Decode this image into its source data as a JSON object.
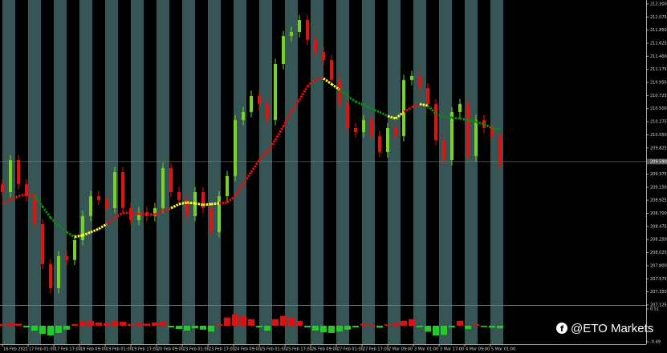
{
  "chart_data": [
    {
      "type": "candlestick",
      "up_color": "#76d420",
      "down_color": "#e8100f",
      "xlim": [
        -0.3,
        80.2
      ],
      "xticks": [
        {
          "value": 0,
          "label": "16 Feb 2021"
        },
        {
          "value": 3.2,
          "label": "17 Feb 01:00"
        },
        {
          "value": 6.4,
          "label": "17 Feb 17:00"
        },
        {
          "value": 9.6,
          "label": "18 Feb 09:00"
        },
        {
          "value": 12.8,
          "label": "19 Feb 01:00"
        },
        {
          "value": 16,
          "label": "19 Feb 17:00"
        },
        {
          "value": 19.2,
          "label": "20 Feb 09:00"
        },
        {
          "value": 22.4,
          "label": "23 Feb 01:00"
        },
        {
          "value": 25.6,
          "label": "23 Feb 17:00"
        },
        {
          "value": 28.8,
          "label": "24 Feb 09:00"
        },
        {
          "value": 32,
          "label": "25 Feb 01:00"
        },
        {
          "value": 35.2,
          "label": "25 Feb 17:00"
        },
        {
          "value": 38.4,
          "label": "26 Feb 09:00"
        },
        {
          "value": 41.6,
          "label": "27 Feb 01:00"
        },
        {
          "value": 44.8,
          "label": "27 Feb 17:00"
        },
        {
          "value": 48,
          "label": "2 Mar 09:00"
        },
        {
          "value": 51.2,
          "label": "3 Mar 01:00"
        },
        {
          "value": 54.4,
          "label": "3 Mar 17:00"
        },
        {
          "value": 57.6,
          "label": "4 Mar 09:00"
        },
        {
          "value": 60.8,
          "label": "5 Mar 01:00"
        }
      ],
      "ylim": [
        207.125,
        212.368
      ],
      "yticks": [
        207.125,
        {
          "value": 207.35,
          "label": "207.350"
        },
        207.575,
        {
          "value": 207.8,
          "label": "207.800"
        },
        208.025,
        {
          "value": 208.25,
          "label": "208.250"
        },
        208.475,
        {
          "value": 208.7,
          "label": "208.700"
        },
        208.925,
        {
          "value": 209.15,
          "label": "209.150"
        },
        209.375,
        {
          "value": 209.6,
          "label": "209.600"
        },
        209.825,
        {
          "value": 210.05,
          "label": "210.050"
        },
        210.275,
        {
          "value": 210.5,
          "label": "210.500"
        },
        210.725,
        {
          "value": 210.95,
          "label": "210.950"
        },
        211.175,
        {
          "value": 211.4,
          "label": "211.400"
        },
        211.625,
        {
          "value": 211.85,
          "label": "211.850"
        },
        212.075,
        {
          "value": 212.3,
          "label": "212.300"
        }
      ],
      "current_price": {
        "value": 209.59,
        "label": "209.590"
      },
      "open": [
        209.2,
        209.065,
        209.616,
        209.203,
        208.997,
        208.515,
        207.827,
        207.414,
        207.965,
        207.9,
        208.24,
        208.653,
        208.997,
        208.928,
        208.79,
        209.409,
        208.79,
        208.584,
        208.721,
        208.653,
        208.79,
        209.478,
        209.065,
        208.928,
        208.653,
        209.065,
        208.79,
        208.377,
        208.997,
        209.341,
        210.304,
        210.441,
        210.717,
        210.579,
        210.304,
        211.267,
        211.749,
        211.818,
        212.024,
        211.68,
        211.474,
        211.336,
        210.992,
        210.579,
        210.166,
        210.097,
        210.304,
        210.029,
        209.753,
        210.166,
        210.029,
        210.992,
        211.061,
        210.854,
        210.579,
        209.96,
        209.616,
        210.441,
        210.579,
        209.685,
        210.304,
        210.166,
        210.029
      ],
      "high": [
        209.29,
        209.706,
        209.706,
        209.293,
        209.087,
        208.605,
        207.917,
        208.055,
        208.055,
        208.33,
        208.743,
        209.087,
        209.087,
        209.018,
        209.499,
        209.499,
        208.88,
        208.811,
        208.811,
        208.88,
        209.568,
        209.568,
        209.155,
        209.018,
        209.155,
        209.155,
        208.88,
        209.087,
        209.431,
        210.394,
        210.531,
        210.807,
        210.807,
        210.669,
        211.357,
        211.839,
        211.908,
        212.114,
        212.114,
        211.77,
        211.564,
        211.426,
        211.082,
        210.669,
        210.256,
        210.394,
        210.394,
        210.119,
        210.256,
        210.256,
        211.082,
        211.151,
        211.151,
        210.944,
        210.669,
        210.05,
        210.531,
        210.669,
        210.669,
        210.394,
        210.394,
        210.256,
        210.119
      ],
      "low": [
        208.975,
        208.975,
        209.113,
        208.907,
        208.425,
        207.737,
        207.324,
        207.324,
        207.81,
        207.81,
        208.15,
        208.563,
        208.838,
        208.7,
        208.7,
        208.7,
        208.494,
        208.494,
        208.563,
        208.563,
        208.7,
        208.975,
        208.838,
        208.563,
        208.563,
        208.7,
        208.287,
        208.287,
        208.907,
        209.251,
        210.214,
        210.351,
        210.489,
        210.214,
        210.214,
        211.177,
        211.659,
        211.728,
        211.59,
        211.384,
        211.246,
        210.902,
        210.489,
        210.076,
        210.007,
        210.007,
        209.939,
        209.663,
        209.663,
        209.939,
        209.939,
        210.902,
        210.764,
        210.489,
        209.87,
        209.526,
        209.526,
        210.351,
        209.595,
        209.595,
        210.076,
        209.939,
        209.457
      ],
      "close": [
        209.065,
        209.616,
        209.203,
        208.997,
        208.515,
        207.827,
        207.414,
        207.965,
        207.9,
        208.24,
        208.653,
        208.997,
        208.928,
        208.79,
        209.409,
        208.79,
        208.584,
        208.721,
        208.653,
        208.79,
        209.478,
        209.065,
        208.928,
        208.653,
        209.065,
        208.79,
        208.377,
        208.997,
        209.341,
        210.304,
        210.441,
        210.717,
        210.579,
        210.304,
        211.267,
        211.749,
        211.818,
        212.024,
        211.68,
        211.474,
        211.336,
        210.992,
        210.579,
        210.166,
        210.097,
        210.304,
        210.029,
        209.753,
        210.166,
        210.029,
        210.992,
        211.061,
        210.854,
        210.579,
        209.96,
        209.616,
        210.441,
        210.579,
        209.685,
        210.304,
        210.166,
        210.029,
        209.547
      ],
      "ma": [
        208.859,
        208.928,
        208.997,
        209.024,
        208.997,
        208.818,
        208.625,
        208.488,
        208.377,
        208.295,
        208.322,
        208.377,
        208.432,
        208.515,
        208.625,
        208.708,
        208.708,
        208.694,
        208.68,
        208.68,
        208.735,
        208.79,
        208.859,
        208.887,
        208.873,
        208.845,
        208.859,
        208.873,
        208.887,
        208.997,
        209.203,
        209.409,
        209.616,
        209.753,
        209.96,
        210.194,
        210.441,
        210.648,
        210.882,
        211.006,
        211.02,
        210.923,
        210.827,
        210.717,
        210.62,
        210.565,
        210.497,
        210.441,
        210.373,
        210.331,
        210.441,
        210.524,
        210.579,
        210.552,
        210.414,
        210.359,
        210.345,
        210.331,
        210.304,
        210.276,
        210.235,
        210.166,
        210.139
      ],
      "ma_colors": [
        "#dd1111",
        "#dd1111",
        "#dd1111",
        "#dd1111",
        "#dd1111",
        "#118811",
        "#118811",
        "#118811",
        "#118811",
        "#118811",
        "#ffff33",
        "#ffff33",
        "#ffff33",
        "#ffff33",
        "#dd1111",
        "#dd1111",
        "#dd1111",
        "#dd1111",
        "#dd1111",
        "#dd1111",
        "#dd1111",
        "#dd1111",
        "#ffff33",
        "#ffff33",
        "#ffff33",
        "#ffff33",
        "#ffff33",
        "#ffff33",
        "#dd1111",
        "#dd1111",
        "#dd1111",
        "#dd1111",
        "#dd1111",
        "#dd1111",
        "#dd1111",
        "#dd1111",
        "#dd1111",
        "#dd1111",
        "#dd1111",
        "#dd1111",
        "#dd1111",
        "#ffff33",
        "#ffff33",
        "#118811",
        "#118811",
        "#118811",
        "#118811",
        "#118811",
        "#118811",
        "#ffff33",
        "#ffff33",
        "#dd1111",
        "#dd1111",
        "#ffff33",
        "#118811",
        "#118811",
        "#118811",
        "#118811",
        "#118811",
        "#118811",
        "#118811",
        "#118811",
        "#118811"
      ]
    },
    {
      "type": "bar",
      "up_color": "#e01010",
      "down_color": "#22cc22",
      "ylim": [
        -0.49,
        0.51
      ],
      "yticks": [
        0.51,
        -0.49
      ],
      "values": [
        0.05,
        0.08,
        0.06,
        -0.05,
        -0.15,
        -0.25,
        -0.3,
        -0.22,
        -0.12,
        0.05,
        0.12,
        0.15,
        0.1,
        0.08,
        0.15,
        0.12,
        0.05,
        0.08,
        0.06,
        0.1,
        0.14,
        -0.05,
        -0.1,
        -0.15,
        -0.08,
        -0.12,
        -0.18,
        0.05,
        0.25,
        0.35,
        0.3,
        0.2,
        -0.05,
        -0.15,
        0.2,
        0.3,
        0.25,
        0.15,
        -0.05,
        -0.15,
        -0.2,
        -0.22,
        -0.18,
        -0.12,
        -0.05,
        0.06,
        0.04,
        -0.06,
        0.04,
        0.08,
        0.15,
        0.2,
        -0.05,
        -0.18,
        -0.3,
        -0.28,
        -0.05,
        0.15,
        -0.1,
        0.05,
        -0.04,
        -0.06,
        -0.08
      ]
    }
  ],
  "watermark": "@ETO Markets"
}
